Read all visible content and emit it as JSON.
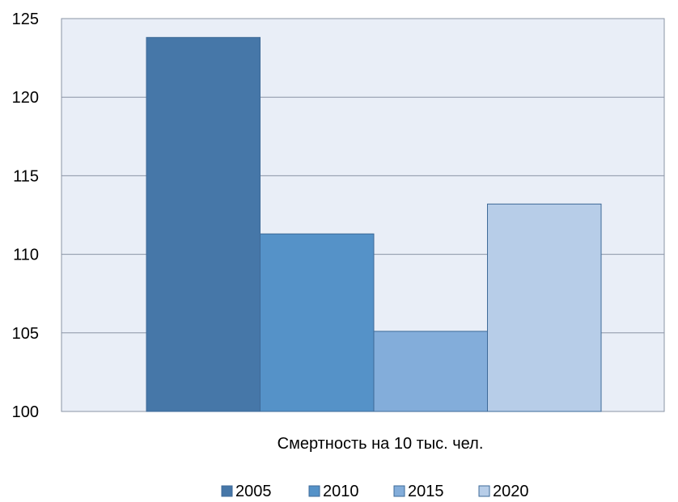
{
  "chart_data": {
    "type": "bar",
    "categories": [
      "Смертность на 10 тыс. чел."
    ],
    "series": [
      {
        "name": "2005",
        "values": [
          123.8
        ],
        "color": "#4677A8"
      },
      {
        "name": "2010",
        "values": [
          111.3
        ],
        "color": "#5592C8"
      },
      {
        "name": "2015",
        "values": [
          105.1
        ],
        "color": "#83ADDA"
      },
      {
        "name": "2020",
        "values": [
          113.2
        ],
        "color": "#B7CDE8"
      }
    ],
    "y_ticks": [
      "100",
      "105",
      "110",
      "115",
      "120",
      "125"
    ],
    "ylim": [
      100,
      125
    ],
    "grid": true,
    "legend_position": "bottom",
    "plot_background": "#E9EEF7",
    "gridline_color": "#8A94A6"
  }
}
